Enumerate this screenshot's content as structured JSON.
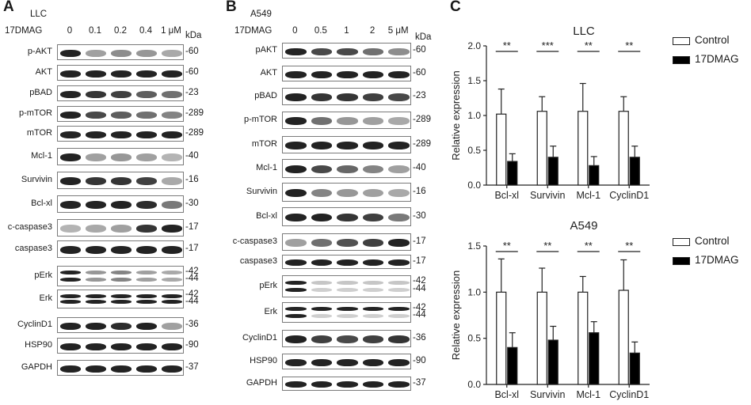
{
  "panelA": {
    "letter": "A",
    "cell_line": "LLC",
    "drug_label": "17DMAG",
    "doses": [
      "0",
      "0.1",
      "0.2",
      "0.4",
      "1 μM"
    ],
    "kda_unit": "kDa",
    "blots": [
      {
        "label": "p-AKT",
        "kda": [
          "-60"
        ]
      },
      {
        "label": "AKT",
        "kda": [
          "-60"
        ]
      },
      {
        "label": "pBAD",
        "kda": [
          "-23"
        ]
      },
      {
        "label": "p-mTOR",
        "kda": [
          "-289"
        ]
      },
      {
        "label": "mTOR",
        "kda": [
          "-289"
        ]
      },
      {
        "label": "Mcl-1",
        "kda": [
          "-40"
        ]
      },
      {
        "label": "Survivin",
        "kda": [
          "-16"
        ]
      },
      {
        "label": "Bcl-xl",
        "kda": [
          "-30"
        ]
      },
      {
        "label": "c-caspase3",
        "kda": [
          "-17"
        ]
      },
      {
        "label": "caspase3",
        "kda": [
          "-17"
        ]
      },
      {
        "label": "pErk",
        "kda": [
          "-42",
          "-44"
        ]
      },
      {
        "label": "Erk",
        "kda": [
          "-42",
          "-44"
        ]
      },
      {
        "label": "CyclinD1",
        "kda": [
          "-36"
        ]
      },
      {
        "label": "HSP90",
        "kda": [
          "-90"
        ]
      },
      {
        "label": "GAPDH",
        "kda": [
          "-37"
        ]
      }
    ]
  },
  "panelB": {
    "letter": "B",
    "cell_line": "A549",
    "drug_label": "17DMAG",
    "doses": [
      "0",
      "0.5",
      "1",
      "2",
      "5 μM"
    ],
    "kda_unit": "kDa",
    "blots": [
      {
        "label": "pAKT",
        "kda": [
          "-60"
        ]
      },
      {
        "label": "AKT",
        "kda": [
          "-60"
        ]
      },
      {
        "label": "pBAD",
        "kda": [
          "-23"
        ]
      },
      {
        "label": "p-mTOR",
        "kda": [
          "-289"
        ]
      },
      {
        "label": "mTOR",
        "kda": [
          "-289"
        ]
      },
      {
        "label": "Mcl-1",
        "kda": [
          "-40"
        ]
      },
      {
        "label": "Survivin",
        "kda": [
          "-16"
        ]
      },
      {
        "label": "Bcl-xl",
        "kda": [
          "-30"
        ]
      },
      {
        "label": "c-caspase3",
        "kda": [
          "-17"
        ]
      },
      {
        "label": "caspase3",
        "kda": [
          "-17"
        ]
      },
      {
        "label": "pErk",
        "kda": [
          "-42",
          "-44"
        ]
      },
      {
        "label": "Erk",
        "kda": [
          "-42",
          "-44"
        ]
      },
      {
        "label": "CyclinD1",
        "kda": [
          "-36"
        ]
      },
      {
        "label": "HSP90",
        "kda": [
          "-90"
        ]
      },
      {
        "label": "GAPDH",
        "kda": [
          "-37"
        ]
      }
    ]
  },
  "panelC": {
    "letter": "C"
  },
  "colors": {
    "control": "#ffffff",
    "treated": "#000000",
    "band": "#1c1c1c"
  },
  "chart_data": [
    {
      "type": "bar",
      "title": "LLC",
      "ylabel": "Relative expression",
      "categories": [
        "Bcl-xl",
        "Survivin",
        "Mcl-1",
        "CyclinD1"
      ],
      "ylim": [
        0,
        2.0
      ],
      "yticks": [
        "0.0",
        "0.5",
        "1.0",
        "1.5",
        "2.0"
      ],
      "series": [
        {
          "name": "Control",
          "values": [
            1.02,
            1.06,
            1.06,
            1.06
          ],
          "errors": [
            0.36,
            0.21,
            0.4,
            0.21
          ]
        },
        {
          "name": "17DMAG",
          "values": [
            0.34,
            0.4,
            0.28,
            0.4
          ],
          "errors": [
            0.11,
            0.16,
            0.13,
            0.16
          ]
        }
      ],
      "significance": [
        "**",
        "***",
        "**",
        "**"
      ],
      "legend_position": "top-right"
    },
    {
      "type": "bar",
      "title": "A549",
      "ylabel": "Relative expression",
      "categories": [
        "Bcl-xl",
        "Survivin",
        "Mcl-1",
        "CyclinD1"
      ],
      "ylim": [
        0,
        1.5
      ],
      "yticks": [
        "0.0",
        "0.5",
        "1.0",
        "1.5"
      ],
      "series": [
        {
          "name": "Control",
          "values": [
            1.0,
            1.0,
            1.0,
            1.02
          ],
          "errors": [
            0.36,
            0.26,
            0.17,
            0.33
          ]
        },
        {
          "name": "17DMAG",
          "values": [
            0.4,
            0.48,
            0.56,
            0.34
          ],
          "errors": [
            0.16,
            0.15,
            0.12,
            0.12
          ]
        }
      ],
      "significance": [
        "**",
        "**",
        "**",
        "**"
      ],
      "legend_position": "top-right"
    }
  ]
}
